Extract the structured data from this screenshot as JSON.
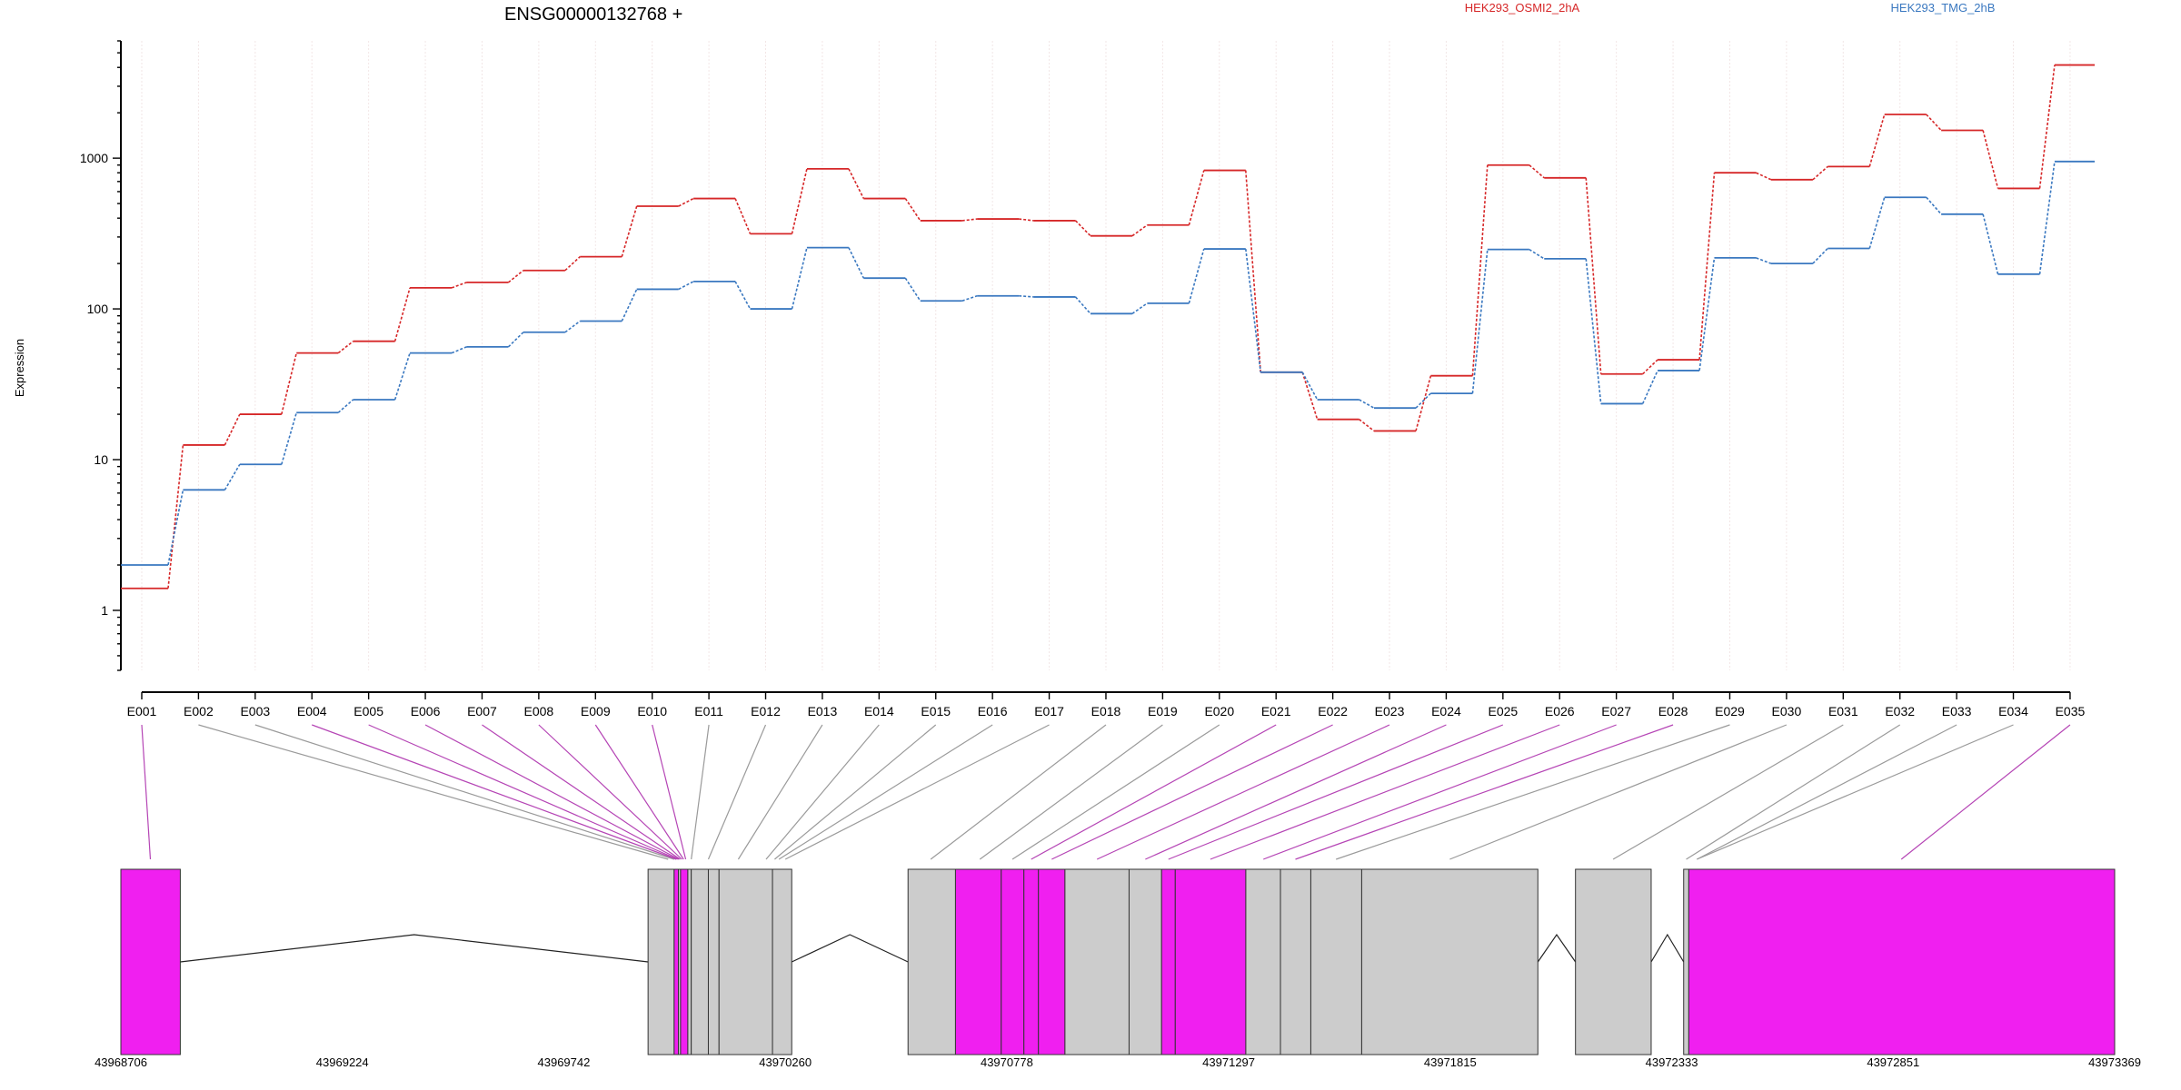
{
  "chart_data": {
    "type": "line",
    "title": "ENSG00000132768 +",
    "ylabel": "Expression",
    "xlabel": "",
    "y_scale": "log",
    "ylim": [
      0.4,
      6000
    ],
    "yticks": [
      1,
      10,
      100,
      1000
    ],
    "ytick_labels": [
      "1",
      "10",
      "100",
      "1000"
    ],
    "grid": "vertical dotted lines at exon bins",
    "legend_position": "top",
    "categories": [
      "E001",
      "E002",
      "E003",
      "E004",
      "E005",
      "E006",
      "E007",
      "E008",
      "E009",
      "E010",
      "E011",
      "E012",
      "E013",
      "E014",
      "E015",
      "E016",
      "E017",
      "E018",
      "E019",
      "E020",
      "E021",
      "E022",
      "E023",
      "E024",
      "E025",
      "E026",
      "E027",
      "E028",
      "E029",
      "E030",
      "E031",
      "E032",
      "E033",
      "E034",
      "E035"
    ],
    "series": [
      {
        "name": "HEK293_OSMI2_2hA",
        "color": "#d62728",
        "values": [
          1.4,
          12.5,
          20,
          51,
          61,
          138,
          150,
          180,
          222,
          480,
          540,
          315,
          850,
          540,
          385,
          395,
          385,
          305,
          360,
          830,
          38,
          18.5,
          15.5,
          36,
          900,
          740,
          37,
          46,
          800,
          720,
          880,
          1950,
          1530,
          630,
          4150
        ]
      },
      {
        "name": "HEK293_TMG_2hB",
        "color": "#3a78c0",
        "values": [
          2.0,
          6.3,
          9.3,
          20.5,
          25,
          51,
          56,
          70,
          83,
          135,
          152,
          100,
          255,
          160,
          113,
          122,
          120,
          93,
          109,
          250,
          38,
          25,
          22,
          27.5,
          248,
          215,
          23.5,
          39,
          218,
          200,
          252,
          550,
          425,
          170,
          950
        ]
      }
    ],
    "gene_model": {
      "genomic_start": 43968706,
      "genomic_end": 43973369,
      "genomic_ticks": [
        43968706,
        43969224,
        43969742,
        43970260,
        43970778,
        43971297,
        43971815,
        43972333,
        43972851,
        43973369
      ],
      "genomic_tick_labels": [
        "43968706",
        "43969224",
        "43969742",
        "43970260",
        "43970778",
        "43971297",
        "43971815",
        "43972333",
        "43972851",
        "43973369"
      ],
      "highlight_color": "#f01ff0",
      "exon_color": "#cccccc",
      "highlighted_exon_bins": [
        "E001",
        "E004",
        "E005",
        "E006",
        "E007",
        "E008",
        "E009",
        "E010",
        "E021",
        "E022",
        "E023",
        "E024",
        "E025",
        "E026",
        "E027",
        "E028",
        "E035"
      ],
      "exon_blocks": [
        {
          "start": 43968706,
          "end": 43968845,
          "color": "magenta"
        },
        {
          "start": 43969939,
          "end": 43970000,
          "color": "gray"
        },
        {
          "start": 43970000,
          "end": 43970010,
          "color": "magenta"
        },
        {
          "start": 43970010,
          "end": 43970015,
          "color": "gray"
        },
        {
          "start": 43970015,
          "end": 43970032,
          "color": "magenta"
        },
        {
          "start": 43970032,
          "end": 43970040,
          "color": "gray"
        },
        {
          "start": 43970040,
          "end": 43970080,
          "color": "gray"
        },
        {
          "start": 43970080,
          "end": 43970105,
          "color": "gray"
        },
        {
          "start": 43970105,
          "end": 43970230,
          "color": "gray"
        },
        {
          "start": 43970230,
          "end": 43970275,
          "color": "gray"
        },
        {
          "start": 43970547,
          "end": 43970658,
          "color": "gray"
        },
        {
          "start": 43970658,
          "end": 43970765,
          "color": "magenta"
        },
        {
          "start": 43970765,
          "end": 43970818,
          "color": "magenta"
        },
        {
          "start": 43970818,
          "end": 43970852,
          "color": "magenta"
        },
        {
          "start": 43970852,
          "end": 43970914,
          "color": "magenta"
        },
        {
          "start": 43970914,
          "end": 43971064,
          "color": "gray"
        },
        {
          "start": 43971064,
          "end": 43971140,
          "color": "gray"
        },
        {
          "start": 43971140,
          "end": 43971172,
          "color": "magenta"
        },
        {
          "start": 43971172,
          "end": 43971337,
          "color": "magenta"
        },
        {
          "start": 43971337,
          "end": 43971418,
          "color": "gray"
        },
        {
          "start": 43971418,
          "end": 43971489,
          "color": "gray"
        },
        {
          "start": 43971489,
          "end": 43971608,
          "color": "gray"
        },
        {
          "start": 43971608,
          "end": 43972020,
          "color": "gray"
        },
        {
          "start": 43972108,
          "end": 43972285,
          "color": "gray"
        },
        {
          "start": 43972361,
          "end": 43972373,
          "color": "gray"
        },
        {
          "start": 43972373,
          "end": 43973369,
          "color": "magenta"
        }
      ],
      "intron_peaks": [
        {
          "start": 43968845,
          "end": 43969939
        },
        {
          "start": 43970275,
          "end": 43970547
        },
        {
          "start": 43972020,
          "end": 43972108
        },
        {
          "start": 43972285,
          "end": 43972361
        }
      ],
      "bin_positions": [
        43968775,
        43969986,
        43970000,
        43970005,
        43970008,
        43970011,
        43970014,
        43970018,
        43970022,
        43970027,
        43970040,
        43970080,
        43970150,
        43970215,
        43970235,
        43970245,
        43970260,
        43970600,
        43970715,
        43970791,
        43970835,
        43970883,
        43970989,
        43971102,
        43971156,
        43971254,
        43971378,
        43971453,
        43971548,
        43971814,
        43972196,
        43972367,
        43972392,
        43972392,
        43972870
      ]
    }
  }
}
